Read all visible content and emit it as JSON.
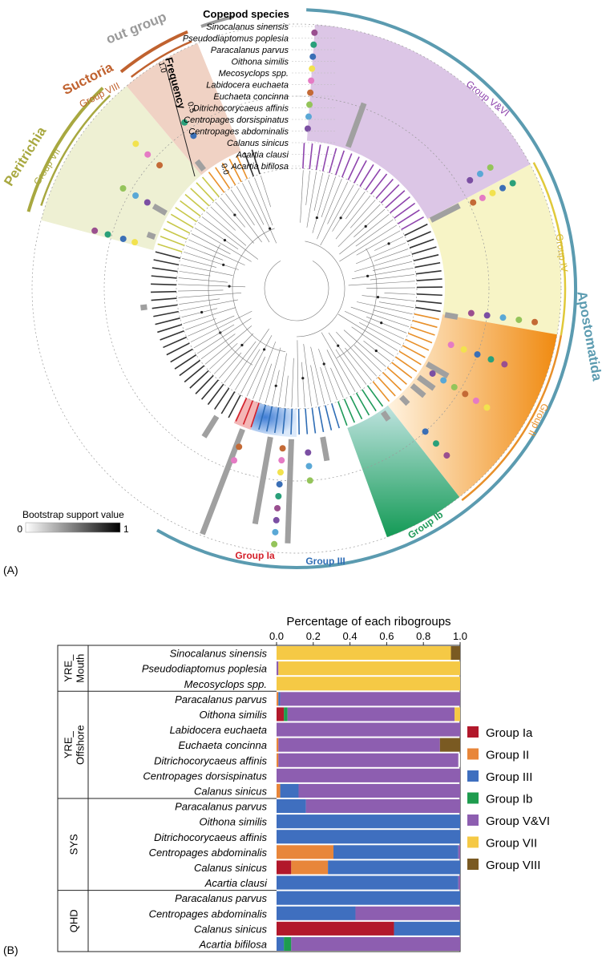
{
  "panel_a": {
    "label": "(A)",
    "species_heading": "Copepod species",
    "species": [
      "Sinocalanus sinensis",
      "Pseudodiaptomus poplesia",
      "Paracalanus parvus",
      "Oithona similis",
      "Mecosyclops spp.",
      "Labidocera euchaeta",
      "Euchaeta concinna",
      "Ditrichocorycaeus affinis",
      "Centropages dorsispinatus",
      "Centropages abdominalis",
      "Calanus sinicus",
      "Acartia clausi",
      "Acartia bifilosa"
    ],
    "frequency_label": "Frequency",
    "frequency_ticks": [
      "1.0",
      "0.5",
      "0.0"
    ],
    "bootstrap_label": "Bootstrap support value",
    "bootstrap_min": "0",
    "bootstrap_max": "1",
    "clades": [
      {
        "name": "out group",
        "color": "#9a9a9a"
      },
      {
        "name": "Suctoria",
        "color": "#c0622f"
      },
      {
        "name": "Group VIII",
        "color": "#c0622f"
      },
      {
        "name": "Peritrichia",
        "color": "#a8a840"
      },
      {
        "name": "Group VII",
        "color": "#a8a840"
      },
      {
        "name": "Group V&VI",
        "color": "#8e44ad"
      },
      {
        "name": "Group IV",
        "color": "#e0c93a"
      },
      {
        "name": "Apostomatida",
        "color": "#5b9bb0"
      },
      {
        "name": "Group II",
        "color": "#e8902a"
      },
      {
        "name": "Group Ib",
        "color": "#1f9a5a"
      },
      {
        "name": "Group III",
        "color": "#2f6db5"
      },
      {
        "name": "Group Ia",
        "color": "#d4202a"
      }
    ]
  },
  "chart_data": {
    "type": "bar",
    "orientation": "horizontal-stacked",
    "panel_label": "(B)",
    "title": "Percentage of each ribogroups",
    "xlim": [
      0,
      1
    ],
    "xticks": [
      "0.0",
      "0.2",
      "0.4",
      "0.6",
      "0.8",
      "1.0"
    ],
    "legend_placement": "right",
    "regions": [
      {
        "name": "YRE_ Mouth",
        "rows": 3
      },
      {
        "name": "YRE_ Offshore",
        "rows": 7
      },
      {
        "name": "SYS",
        "rows": 6
      },
      {
        "name": "QHD",
        "rows": 4
      }
    ],
    "categories": [
      "Sinocalanus sinensis",
      "Pseudodiaptomus poplesia",
      "Mecosyclops spp.",
      "Paracalanus parvus",
      "Oithona similis",
      "Labidocera euchaeta",
      "Euchaeta concinna",
      "Ditrichocorycaeus affinis",
      "Centropages dorsispinatus",
      "Calanus sinicus",
      "Paracalanus parvus",
      "Oithona similis",
      "Ditrichocorycaeus affinis",
      "Centropages abdominalis",
      "Calanus sinicus",
      "Acartia clausi",
      "Paracalanus parvus",
      "Centropages abdominalis",
      "Calanus sinicus",
      "Acartia bifilosa"
    ],
    "series": [
      {
        "name": "Group Ia",
        "color": "#b2182b",
        "values": [
          0,
          0,
          0,
          0,
          0.04,
          0,
          0,
          0,
          0,
          0,
          0,
          0,
          0,
          0,
          0.08,
          0,
          0,
          0,
          0.64,
          0
        ]
      },
      {
        "name": "Group II",
        "color": "#e8863a",
        "values": [
          0,
          0,
          0,
          0.01,
          0,
          0,
          0.01,
          0.01,
          0,
          0.02,
          0,
          0,
          0,
          0.31,
          0.2,
          0,
          0,
          0,
          0,
          0
        ]
      },
      {
        "name": "Group III",
        "color": "#3f6fbf",
        "values": [
          0,
          0,
          0,
          0.01,
          0,
          0,
          0,
          0,
          0,
          0.1,
          0.16,
          1.0,
          1.0,
          0.68,
          0.72,
          0.99,
          1.0,
          0.43,
          0.36,
          0.04
        ]
      },
      {
        "name": "Group Ib",
        "color": "#1e9c4e",
        "values": [
          0,
          0,
          0,
          0,
          0.02,
          0,
          0,
          0,
          0,
          0,
          0,
          0,
          0,
          0,
          0,
          0,
          0,
          0,
          0,
          0.04
        ]
      },
      {
        "name": "Group V&VI",
        "color": "#8d5eb0",
        "values": [
          0,
          0.01,
          0,
          0.98,
          0.91,
          1.0,
          0.88,
          0.98,
          1.0,
          0.88,
          0.84,
          0,
          0,
          0.01,
          0,
          0.01,
          0,
          0.57,
          0,
          0.92
        ]
      },
      {
        "name": "Group VII",
        "color": "#f5c945",
        "values": [
          0.95,
          0.99,
          1.0,
          0,
          0.03,
          0,
          0,
          0,
          0,
          0,
          0,
          0,
          0,
          0,
          0,
          0,
          0,
          0,
          0,
          0
        ]
      },
      {
        "name": "Group VIII",
        "color": "#7a5a22",
        "values": [
          0.05,
          0,
          0,
          0,
          0,
          0,
          0.11,
          0,
          0,
          0,
          0,
          0,
          0,
          0,
          0,
          0,
          0,
          0,
          0,
          0
        ]
      }
    ]
  }
}
